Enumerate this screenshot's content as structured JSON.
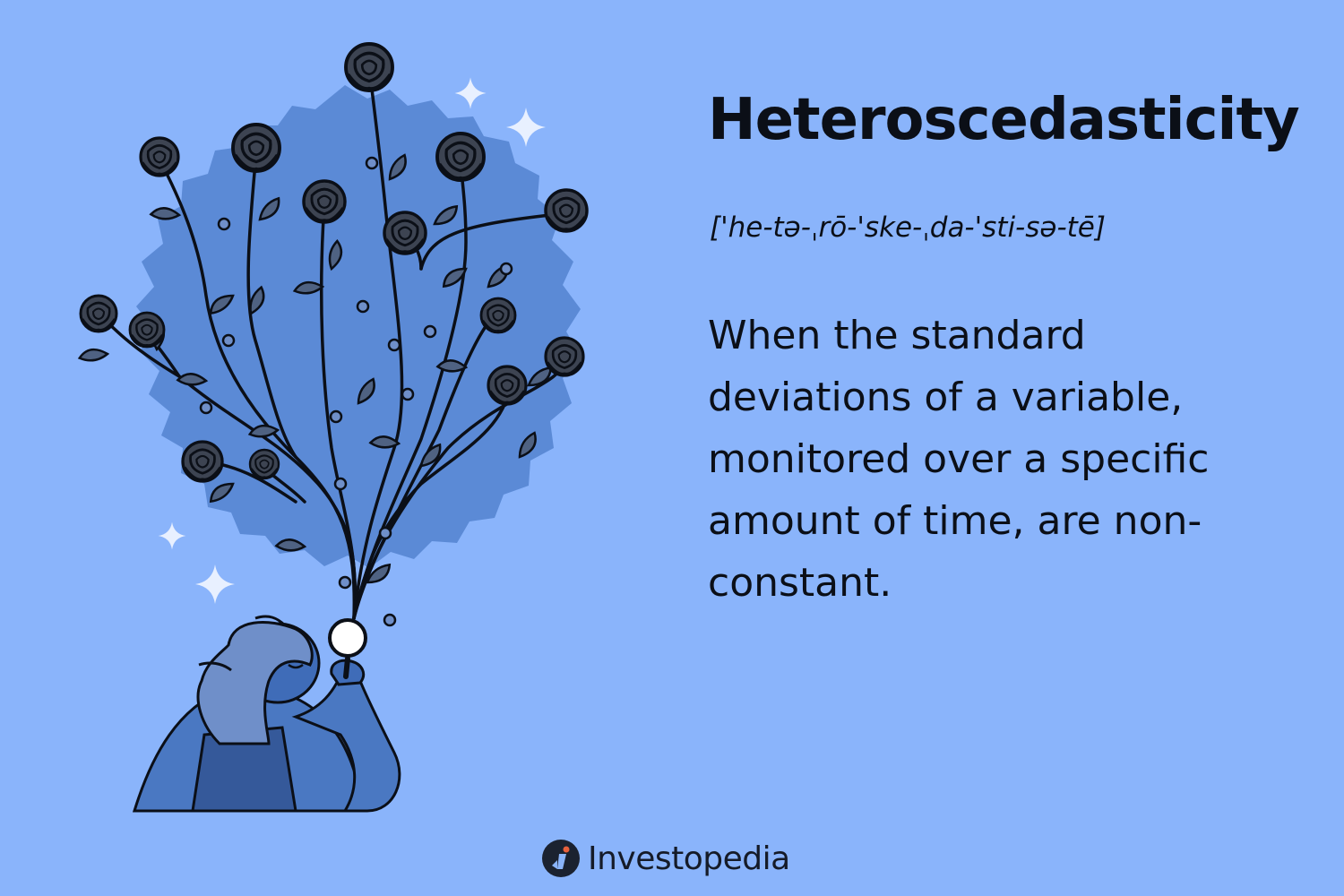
{
  "term": "Heteroscedasticity",
  "pronunciation": "['he-tə-ˌrō-'ske-ˌda-'sti-sə-tē]",
  "definition": "When the standard deviations of a variable, monitored over a specific amount of time, are non-constant.",
  "brand": {
    "name": "Investopedia"
  },
  "colors": {
    "background": "#8ab4fb",
    "bush": "#5b8ad6",
    "ink": "#0b0f17",
    "figure": "#3f6cb8",
    "sparkle": "#e8f0ff",
    "logo_accent": "#e8603c"
  },
  "illustration": {
    "subject": "person holding a magnifying glass from which a vine of roses grows",
    "icons": [
      "rose-icon",
      "leaf-icon",
      "sparkle-icon",
      "magnifying-glass-icon"
    ]
  }
}
